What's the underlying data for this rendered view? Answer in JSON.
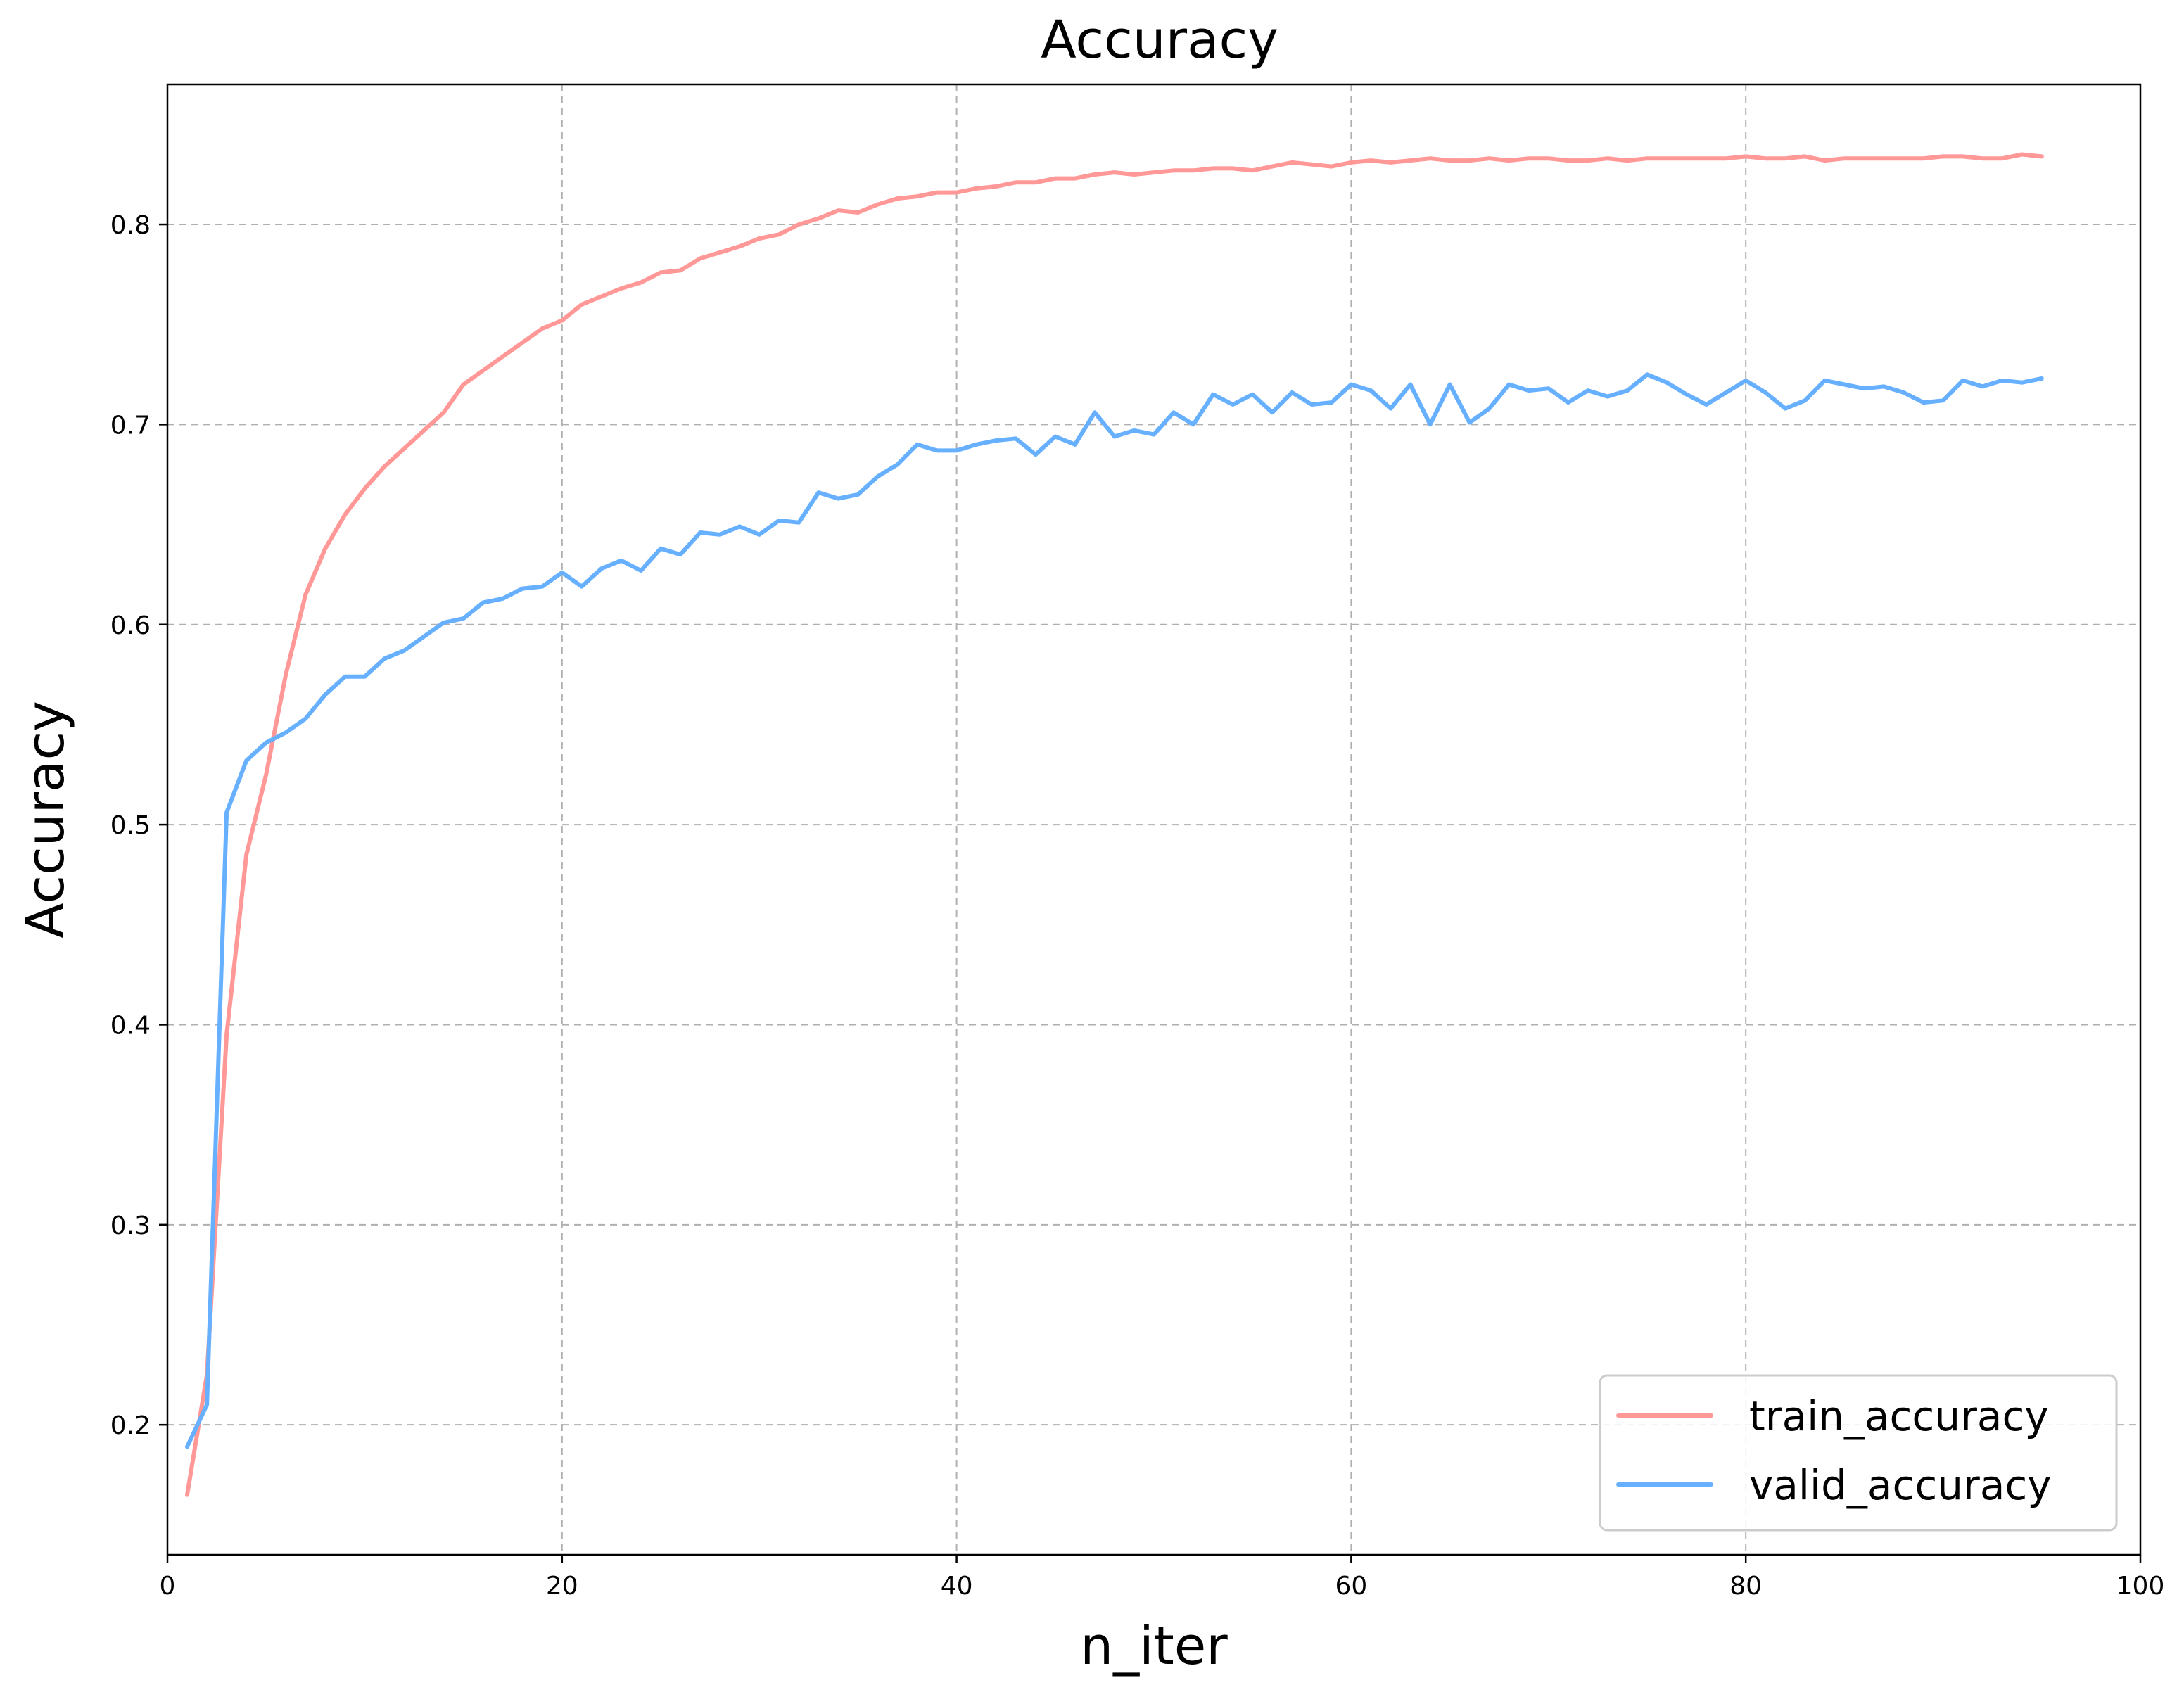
{
  "chart_data": {
    "type": "line",
    "title": "Accuracy",
    "xlabel": "n_iter",
    "ylabel": "Accuracy",
    "xlim": [
      0,
      100
    ],
    "ylim": [
      0.135,
      0.87
    ],
    "x_ticks": [
      0,
      20,
      40,
      60,
      80,
      100
    ],
    "x_tick_labels": [
      "0",
      "20",
      "40",
      "60",
      "80",
      "100"
    ],
    "y_ticks": [
      0.2,
      0.3,
      0.4,
      0.5,
      0.6,
      0.7,
      0.8
    ],
    "y_tick_labels": [
      "0.2",
      "0.3",
      "0.4",
      "0.5",
      "0.6",
      "0.7",
      "0.8"
    ],
    "grid": true,
    "legend_position": "bottom-right",
    "x": [
      1,
      2,
      3,
      4,
      5,
      6,
      7,
      8,
      9,
      10,
      11,
      12,
      13,
      14,
      15,
      16,
      17,
      18,
      19,
      20,
      21,
      22,
      23,
      24,
      25,
      26,
      27,
      28,
      29,
      30,
      31,
      32,
      33,
      34,
      35,
      36,
      37,
      38,
      39,
      40,
      41,
      42,
      43,
      44,
      45,
      46,
      47,
      48,
      49,
      50,
      51,
      52,
      53,
      54,
      55,
      56,
      57,
      58,
      59,
      60,
      61,
      62,
      63,
      64,
      65,
      66,
      67,
      68,
      69,
      70,
      71,
      72,
      73,
      74,
      75,
      76,
      77,
      78,
      79,
      80,
      81,
      82,
      83,
      84,
      85,
      86,
      87,
      88,
      89,
      90,
      91,
      92,
      93,
      94,
      95
    ],
    "series": [
      {
        "name": "train_accuracy",
        "color": "#ff9896",
        "values": [
          0.165,
          0.225,
          0.395,
          0.485,
          0.525,
          0.575,
          0.615,
          0.638,
          0.655,
          0.668,
          0.679,
          0.688,
          0.697,
          0.706,
          0.72,
          0.727,
          0.734,
          0.741,
          0.748,
          0.752,
          0.76,
          0.764,
          0.768,
          0.771,
          0.776,
          0.777,
          0.783,
          0.786,
          0.789,
          0.793,
          0.795,
          0.8,
          0.803,
          0.807,
          0.806,
          0.81,
          0.813,
          0.814,
          0.816,
          0.816,
          0.818,
          0.819,
          0.821,
          0.821,
          0.823,
          0.823,
          0.825,
          0.826,
          0.825,
          0.826,
          0.827,
          0.827,
          0.828,
          0.828,
          0.827,
          0.829,
          0.831,
          0.83,
          0.829,
          0.831,
          0.832,
          0.831,
          0.832,
          0.833,
          0.832,
          0.832,
          0.833,
          0.832,
          0.833,
          0.833,
          0.832,
          0.832,
          0.833,
          0.832,
          0.833,
          0.833,
          0.833,
          0.833,
          0.833,
          0.834,
          0.833,
          0.833,
          0.834,
          0.832,
          0.833,
          0.833,
          0.833,
          0.833,
          0.833,
          0.834,
          0.834,
          0.833,
          0.833,
          0.835,
          0.834
        ]
      },
      {
        "name": "valid_accuracy",
        "color": "#66b0ff",
        "values": [
          0.189,
          0.21,
          0.506,
          0.532,
          0.541,
          0.546,
          0.553,
          0.565,
          0.574,
          0.574,
          0.583,
          0.587,
          0.594,
          0.601,
          0.603,
          0.611,
          0.613,
          0.618,
          0.619,
          0.626,
          0.619,
          0.628,
          0.632,
          0.627,
          0.638,
          0.635,
          0.646,
          0.645,
          0.649,
          0.645,
          0.652,
          0.651,
          0.666,
          0.663,
          0.665,
          0.674,
          0.68,
          0.69,
          0.687,
          0.687,
          0.69,
          0.692,
          0.693,
          0.685,
          0.694,
          0.69,
          0.706,
          0.694,
          0.697,
          0.695,
          0.706,
          0.7,
          0.715,
          0.71,
          0.715,
          0.706,
          0.716,
          0.71,
          0.711,
          0.72,
          0.717,
          0.708,
          0.72,
          0.7,
          0.72,
          0.701,
          0.708,
          0.72,
          0.717,
          0.718,
          0.711,
          0.717,
          0.714,
          0.717,
          0.725,
          0.721,
          0.715,
          0.71,
          0.716,
          0.722,
          0.716,
          0.708,
          0.712,
          0.722,
          0.72,
          0.718,
          0.719,
          0.716,
          0.711,
          0.712,
          0.722,
          0.719,
          0.722,
          0.721,
          0.723
        ]
      }
    ]
  }
}
